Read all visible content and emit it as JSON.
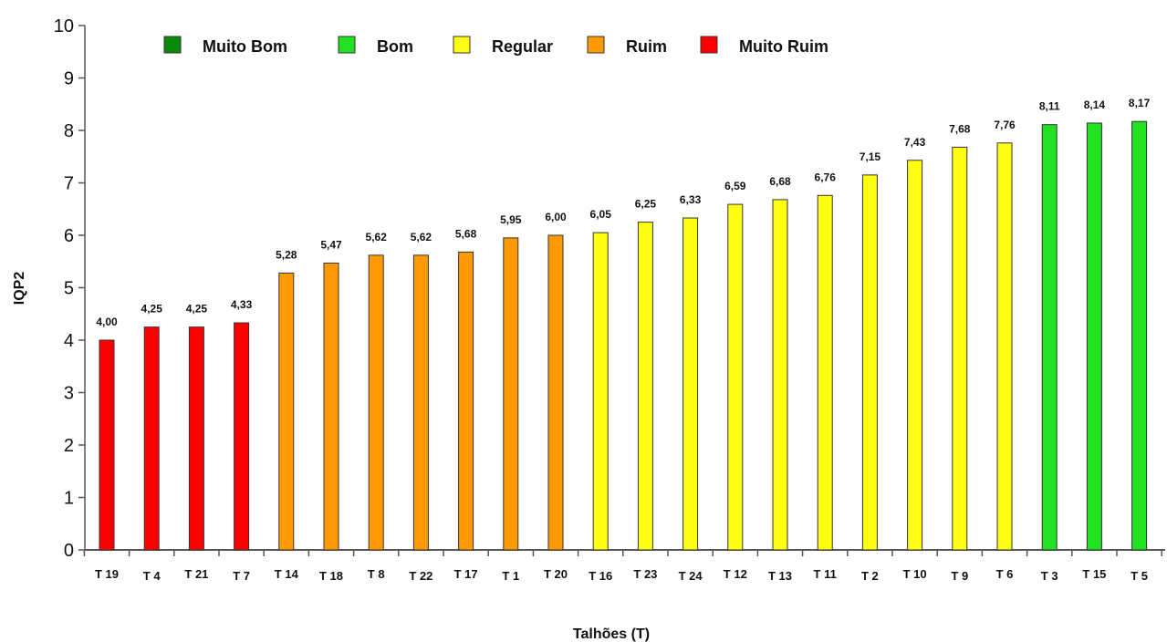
{
  "chart_data": {
    "type": "bar",
    "title": "",
    "xlabel": "Talhões (T)",
    "ylabel": "IQP2",
    "ylim": [
      0,
      10
    ],
    "yticks": [
      0,
      1,
      2,
      3,
      4,
      5,
      6,
      7,
      8,
      9,
      10
    ],
    "grid": false,
    "legend_position": "top",
    "legend": [
      {
        "name": "Muito Bom",
        "color": "#0a8a0a"
      },
      {
        "name": "Bom",
        "color": "#22e022"
      },
      {
        "name": "Regular",
        "color": "#ffff14"
      },
      {
        "name": "Ruim",
        "color": "#ff9a05"
      },
      {
        "name": "Muito Ruim",
        "color": "#ff0000"
      }
    ],
    "categories": [
      "T 19",
      "T 4",
      "T 21",
      "T 7",
      "T 14",
      "T 18",
      "T 8",
      "T 22",
      "T 17",
      "T 1",
      "T 20",
      "T 16",
      "T 23",
      "T 24",
      "T 12",
      "T 13",
      "T 11",
      "T 2",
      "T 10",
      "T 9",
      "T 6",
      "T 3",
      "T 15",
      "T 5"
    ],
    "values": [
      4.0,
      4.25,
      4.25,
      4.33,
      5.28,
      5.47,
      5.62,
      5.62,
      5.68,
      5.95,
      6.0,
      6.05,
      6.25,
      6.33,
      6.59,
      6.68,
      6.76,
      7.15,
      7.43,
      7.68,
      7.76,
      8.11,
      8.14,
      8.17
    ],
    "value_labels": [
      "4,00",
      "4,25",
      "4,25",
      "4,33",
      "5,28",
      "5,47",
      "5,62",
      "5,62",
      "5,68",
      "5,95",
      "6,00",
      "6,05",
      "6,25",
      "6,33",
      "6,59",
      "6,68",
      "6,76",
      "7,15",
      "7,43",
      "7,68",
      "7,76",
      "8,11",
      "8,14",
      "8,17"
    ],
    "classes": [
      "Muito Ruim",
      "Muito Ruim",
      "Muito Ruim",
      "Muito Ruim",
      "Ruim",
      "Ruim",
      "Ruim",
      "Ruim",
      "Ruim",
      "Ruim",
      "Ruim",
      "Regular",
      "Regular",
      "Regular",
      "Regular",
      "Regular",
      "Regular",
      "Regular",
      "Regular",
      "Regular",
      "Regular",
      "Bom",
      "Bom",
      "Bom"
    ]
  }
}
